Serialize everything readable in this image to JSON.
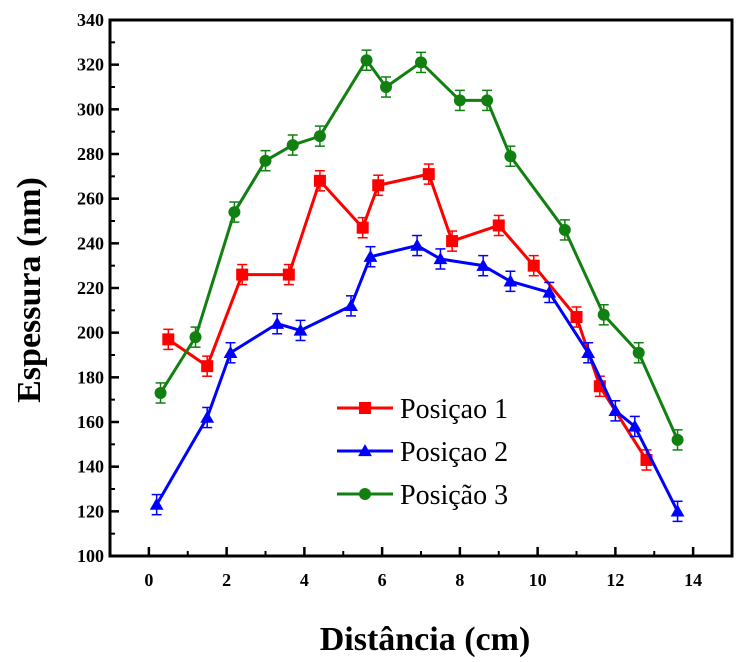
{
  "chart_data": {
    "type": "line",
    "title": "",
    "xlabel": "Distância (cm)",
    "ylabel": "Espessura (nm)",
    "xlim": [
      -1,
      15
    ],
    "ylim": [
      100,
      340
    ],
    "xticks": [
      0,
      2,
      4,
      6,
      8,
      10,
      12,
      14
    ],
    "yticks": [
      100,
      120,
      140,
      160,
      180,
      200,
      220,
      240,
      260,
      280,
      300,
      320,
      340
    ],
    "grid": false,
    "legend_position": "lower-center",
    "error_bar": 4.5,
    "series": [
      {
        "name": "Posiçao 1",
        "color": "#ff0000",
        "marker": "square",
        "points": [
          [
            0.5,
            197
          ],
          [
            1.5,
            185
          ],
          [
            2.4,
            226
          ],
          [
            3.6,
            226
          ],
          [
            4.4,
            268
          ],
          [
            5.5,
            247
          ],
          [
            5.9,
            266
          ],
          [
            7.2,
            271
          ],
          [
            7.8,
            241
          ],
          [
            9.0,
            248
          ],
          [
            9.9,
            230
          ],
          [
            11.0,
            207
          ],
          [
            11.6,
            176
          ],
          [
            12.8,
            143
          ]
        ]
      },
      {
        "name": "Posiçao 2",
        "color": "#0000ff",
        "marker": "triangle",
        "points": [
          [
            0.2,
            123
          ],
          [
            1.5,
            162
          ],
          [
            2.1,
            191
          ],
          [
            3.3,
            204
          ],
          [
            3.9,
            201
          ],
          [
            5.2,
            212
          ],
          [
            5.7,
            234
          ],
          [
            6.9,
            239
          ],
          [
            7.5,
            233
          ],
          [
            8.6,
            230
          ],
          [
            9.3,
            223
          ],
          [
            10.3,
            218
          ],
          [
            11.3,
            191
          ],
          [
            12.0,
            165
          ],
          [
            12.5,
            158
          ],
          [
            13.6,
            120
          ]
        ]
      },
      {
        "name": "Posição 3",
        "color": "#118011",
        "marker": "circle",
        "points": [
          [
            0.3,
            173
          ],
          [
            1.2,
            198
          ],
          [
            2.2,
            254
          ],
          [
            3.0,
            277
          ],
          [
            3.7,
            284
          ],
          [
            4.4,
            288
          ],
          [
            5.6,
            322
          ],
          [
            6.1,
            310
          ],
          [
            7.0,
            321
          ],
          [
            8.0,
            304
          ],
          [
            8.7,
            304
          ],
          [
            9.3,
            279
          ],
          [
            10.7,
            246
          ],
          [
            11.7,
            208
          ],
          [
            12.6,
            191
          ],
          [
            13.6,
            152
          ]
        ]
      }
    ]
  }
}
